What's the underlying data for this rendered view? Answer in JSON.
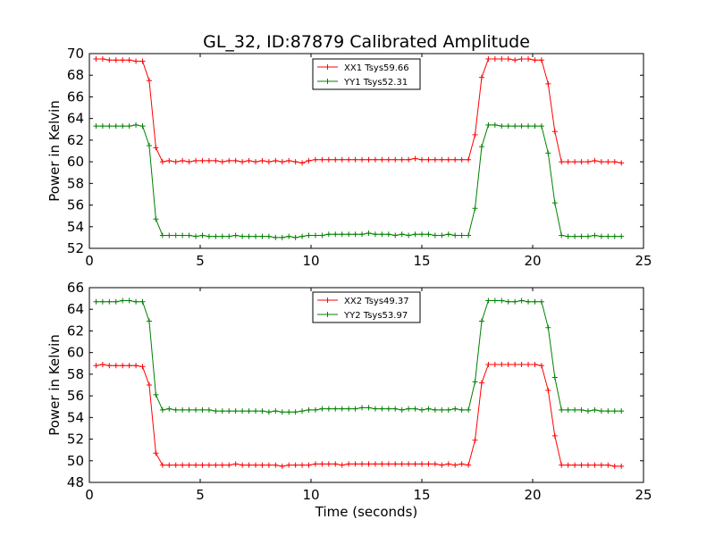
{
  "title": "GL_32, ID:87879 Calibrated Amplitude",
  "chart_data": [
    {
      "type": "line",
      "xlabel": "",
      "ylabel": "Power in Kelvin",
      "xlim": [
        0,
        25
      ],
      "ylim": [
        52,
        70
      ],
      "xticks": [
        0,
        5,
        10,
        15,
        20,
        25
      ],
      "yticks": [
        52,
        54,
        56,
        58,
        60,
        62,
        64,
        66,
        68,
        70
      ],
      "grid": false,
      "legend_position": "top-center",
      "marker": "+",
      "x": [
        0.3,
        0.6,
        0.9,
        1.2,
        1.5,
        1.8,
        2.1,
        2.4,
        2.7,
        3.0,
        3.3,
        3.6,
        3.9,
        4.2,
        4.5,
        4.8,
        5.1,
        5.4,
        5.7,
        6.0,
        6.3,
        6.6,
        6.9,
        7.2,
        7.5,
        7.8,
        8.1,
        8.4,
        8.7,
        9.0,
        9.3,
        9.6,
        9.9,
        10.2,
        10.5,
        10.8,
        11.1,
        11.4,
        11.7,
        12.0,
        12.3,
        12.6,
        12.9,
        13.2,
        13.5,
        13.8,
        14.1,
        14.4,
        14.7,
        15.0,
        15.3,
        15.6,
        15.9,
        16.2,
        16.5,
        16.8,
        17.1,
        17.4,
        17.7,
        18.0,
        18.3,
        18.6,
        18.9,
        19.2,
        19.5,
        19.8,
        20.1,
        20.4,
        20.7,
        21.0,
        21.3,
        21.6,
        21.9,
        22.2,
        22.5,
        22.8,
        23.1,
        23.4,
        23.7,
        24.0
      ],
      "series": [
        {
          "name": "XX1 Tsys59.66",
          "color": "#ff0000",
          "values": [
            69.5,
            69.5,
            69.4,
            69.4,
            69.4,
            69.4,
            69.3,
            69.3,
            67.5,
            61.3,
            60.0,
            60.1,
            60.0,
            60.1,
            60.0,
            60.1,
            60.1,
            60.1,
            60.1,
            60.0,
            60.1,
            60.1,
            60.0,
            60.1,
            60.0,
            60.1,
            60.0,
            60.1,
            60.0,
            60.1,
            60.0,
            59.9,
            60.1,
            60.2,
            60.2,
            60.2,
            60.2,
            60.2,
            60.2,
            60.2,
            60.2,
            60.2,
            60.2,
            60.2,
            60.2,
            60.2,
            60.2,
            60.2,
            60.3,
            60.2,
            60.2,
            60.2,
            60.2,
            60.2,
            60.2,
            60.2,
            60.2,
            62.5,
            67.8,
            69.5,
            69.5,
            69.5,
            69.5,
            69.4,
            69.5,
            69.5,
            69.4,
            69.4,
            67.2,
            62.8,
            60.0,
            60.0,
            60.0,
            60.0,
            60.0,
            60.1,
            60.0,
            60.0,
            60.0,
            59.9
          ]
        },
        {
          "name": "YY1 Tsys52.31",
          "color": "#008000",
          "values": [
            63.3,
            63.3,
            63.3,
            63.3,
            63.3,
            63.3,
            63.4,
            63.3,
            61.5,
            54.7,
            53.2,
            53.2,
            53.2,
            53.2,
            53.2,
            53.1,
            53.2,
            53.1,
            53.1,
            53.1,
            53.1,
            53.2,
            53.1,
            53.1,
            53.1,
            53.1,
            53.1,
            53.0,
            53.0,
            53.1,
            53.0,
            53.1,
            53.2,
            53.2,
            53.2,
            53.3,
            53.3,
            53.3,
            53.3,
            53.3,
            53.3,
            53.4,
            53.3,
            53.3,
            53.3,
            53.2,
            53.3,
            53.2,
            53.3,
            53.3,
            53.3,
            53.2,
            53.2,
            53.3,
            53.2,
            53.2,
            53.2,
            55.7,
            61.4,
            63.4,
            63.4,
            63.3,
            63.3,
            63.3,
            63.3,
            63.3,
            63.3,
            63.3,
            60.8,
            56.2,
            53.2,
            53.1,
            53.1,
            53.1,
            53.1,
            53.2,
            53.1,
            53.1,
            53.1,
            53.1
          ]
        }
      ]
    },
    {
      "type": "line",
      "xlabel": "Time (seconds)",
      "ylabel": "Power in Kelvin",
      "xlim": [
        0,
        25
      ],
      "ylim": [
        48,
        66
      ],
      "xticks": [
        0,
        5,
        10,
        15,
        20,
        25
      ],
      "yticks": [
        48,
        50,
        52,
        54,
        56,
        58,
        60,
        62,
        64,
        66
      ],
      "grid": false,
      "legend_position": "top-center",
      "marker": "+",
      "x": [
        0.3,
        0.6,
        0.9,
        1.2,
        1.5,
        1.8,
        2.1,
        2.4,
        2.7,
        3.0,
        3.3,
        3.6,
        3.9,
        4.2,
        4.5,
        4.8,
        5.1,
        5.4,
        5.7,
        6.0,
        6.3,
        6.6,
        6.9,
        7.2,
        7.5,
        7.8,
        8.1,
        8.4,
        8.7,
        9.0,
        9.3,
        9.6,
        9.9,
        10.2,
        10.5,
        10.8,
        11.1,
        11.4,
        11.7,
        12.0,
        12.3,
        12.6,
        12.9,
        13.2,
        13.5,
        13.8,
        14.1,
        14.4,
        14.7,
        15.0,
        15.3,
        15.6,
        15.9,
        16.2,
        16.5,
        16.8,
        17.1,
        17.4,
        17.7,
        18.0,
        18.3,
        18.6,
        18.9,
        19.2,
        19.5,
        19.8,
        20.1,
        20.4,
        20.7,
        21.0,
        21.3,
        21.6,
        21.9,
        22.2,
        22.5,
        22.8,
        23.1,
        23.4,
        23.7,
        24.0
      ],
      "series": [
        {
          "name": "XX2 Tsys49.37",
          "color": "#ff0000",
          "values": [
            58.8,
            58.9,
            58.8,
            58.8,
            58.8,
            58.8,
            58.8,
            58.7,
            57.0,
            50.7,
            49.6,
            49.6,
            49.6,
            49.6,
            49.6,
            49.6,
            49.6,
            49.6,
            49.6,
            49.6,
            49.6,
            49.7,
            49.6,
            49.6,
            49.6,
            49.6,
            49.6,
            49.6,
            49.5,
            49.6,
            49.6,
            49.6,
            49.6,
            49.7,
            49.7,
            49.7,
            49.7,
            49.6,
            49.7,
            49.7,
            49.7,
            49.7,
            49.7,
            49.7,
            49.7,
            49.7,
            49.7,
            49.7,
            49.7,
            49.7,
            49.7,
            49.7,
            49.6,
            49.7,
            49.6,
            49.7,
            49.6,
            51.9,
            57.2,
            58.9,
            58.9,
            58.9,
            58.9,
            58.9,
            58.9,
            58.9,
            58.9,
            58.8,
            56.5,
            52.3,
            49.6,
            49.6,
            49.6,
            49.6,
            49.6,
            49.6,
            49.6,
            49.6,
            49.5,
            49.5
          ]
        },
        {
          "name": "YY2 Tsys53.97",
          "color": "#008000",
          "values": [
            64.7,
            64.7,
            64.7,
            64.7,
            64.8,
            64.8,
            64.7,
            64.7,
            62.9,
            56.1,
            54.7,
            54.8,
            54.7,
            54.7,
            54.7,
            54.7,
            54.7,
            54.7,
            54.6,
            54.6,
            54.6,
            54.6,
            54.6,
            54.6,
            54.6,
            54.6,
            54.5,
            54.6,
            54.5,
            54.5,
            54.5,
            54.6,
            54.7,
            54.7,
            54.8,
            54.8,
            54.8,
            54.8,
            54.8,
            54.8,
            54.9,
            54.9,
            54.8,
            54.8,
            54.8,
            54.8,
            54.7,
            54.8,
            54.8,
            54.7,
            54.8,
            54.7,
            54.7,
            54.7,
            54.8,
            54.7,
            54.7,
            57.3,
            62.9,
            64.8,
            64.8,
            64.8,
            64.7,
            64.7,
            64.8,
            64.7,
            64.7,
            64.7,
            62.3,
            57.7,
            54.7,
            54.7,
            54.7,
            54.7,
            54.6,
            54.7,
            54.6,
            54.6,
            54.6,
            54.6
          ]
        }
      ]
    }
  ]
}
